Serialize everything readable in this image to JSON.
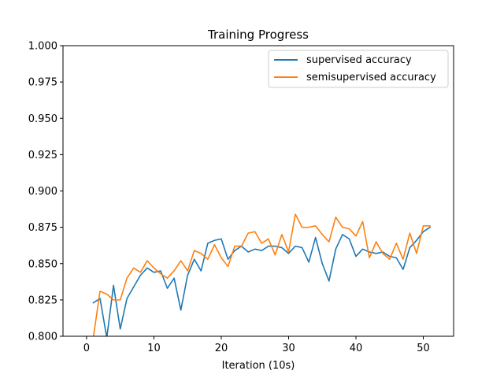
{
  "chart_data": {
    "type": "line",
    "title": "Training Progress",
    "xlabel": "Iteration (10s)",
    "ylabel": "",
    "xlim": [
      -3.5,
      54.5
    ],
    "ylim": [
      0.8,
      1.0
    ],
    "xticks": [
      0,
      10,
      20,
      30,
      40,
      50
    ],
    "yticks": [
      "0.800",
      "0.825",
      "0.850",
      "0.875",
      "0.900",
      "0.925",
      "0.950",
      "0.975",
      "1.000"
    ],
    "legend_position": "top-right",
    "grid": false,
    "series": [
      {
        "name": "supervised accuracy",
        "color": "#1f77b4",
        "x": [
          1,
          2,
          3,
          4,
          5,
          6,
          7,
          8,
          9,
          10,
          11,
          12,
          13,
          14,
          15,
          16,
          17,
          18,
          19,
          20,
          21,
          22,
          23,
          24,
          25,
          26,
          27,
          28,
          29,
          30,
          31,
          32,
          33,
          34,
          35,
          36,
          37,
          38,
          39,
          40,
          41,
          42,
          43,
          44,
          45,
          46,
          47,
          48,
          49,
          50,
          51
        ],
        "y": [
          0.823,
          0.826,
          0.799,
          0.835,
          0.805,
          0.826,
          0.834,
          0.842,
          0.847,
          0.844,
          0.845,
          0.833,
          0.84,
          0.818,
          0.842,
          0.853,
          0.845,
          0.864,
          0.866,
          0.867,
          0.853,
          0.859,
          0.862,
          0.858,
          0.86,
          0.859,
          0.862,
          0.862,
          0.861,
          0.857,
          0.862,
          0.861,
          0.851,
          0.868,
          0.85,
          0.838,
          0.86,
          0.87,
          0.867,
          0.855,
          0.86,
          0.858,
          0.857,
          0.858,
          0.855,
          0.854,
          0.846,
          0.861,
          0.866,
          0.872,
          0.875
        ]
      },
      {
        "name": "semisupervised accuracy",
        "color": "#ff7f0e",
        "x": [
          1,
          2,
          3,
          4,
          5,
          6,
          7,
          8,
          9,
          10,
          11,
          12,
          13,
          14,
          15,
          16,
          17,
          18,
          19,
          20,
          21,
          22,
          23,
          24,
          25,
          26,
          27,
          28,
          29,
          30,
          31,
          32,
          33,
          34,
          35,
          36,
          37,
          38,
          39,
          40,
          41,
          42,
          43,
          44,
          45,
          46,
          47,
          48,
          49,
          50,
          51
        ],
        "y": [
          0.799,
          0.831,
          0.829,
          0.825,
          0.825,
          0.84,
          0.847,
          0.844,
          0.852,
          0.847,
          0.843,
          0.84,
          0.845,
          0.852,
          0.845,
          0.859,
          0.857,
          0.853,
          0.863,
          0.854,
          0.848,
          0.862,
          0.862,
          0.871,
          0.872,
          0.864,
          0.867,
          0.856,
          0.87,
          0.858,
          0.884,
          0.875,
          0.875,
          0.876,
          0.87,
          0.865,
          0.882,
          0.875,
          0.874,
          0.869,
          0.879,
          0.854,
          0.865,
          0.857,
          0.853,
          0.864,
          0.853,
          0.871,
          0.857,
          0.876,
          0.876
        ]
      }
    ]
  }
}
